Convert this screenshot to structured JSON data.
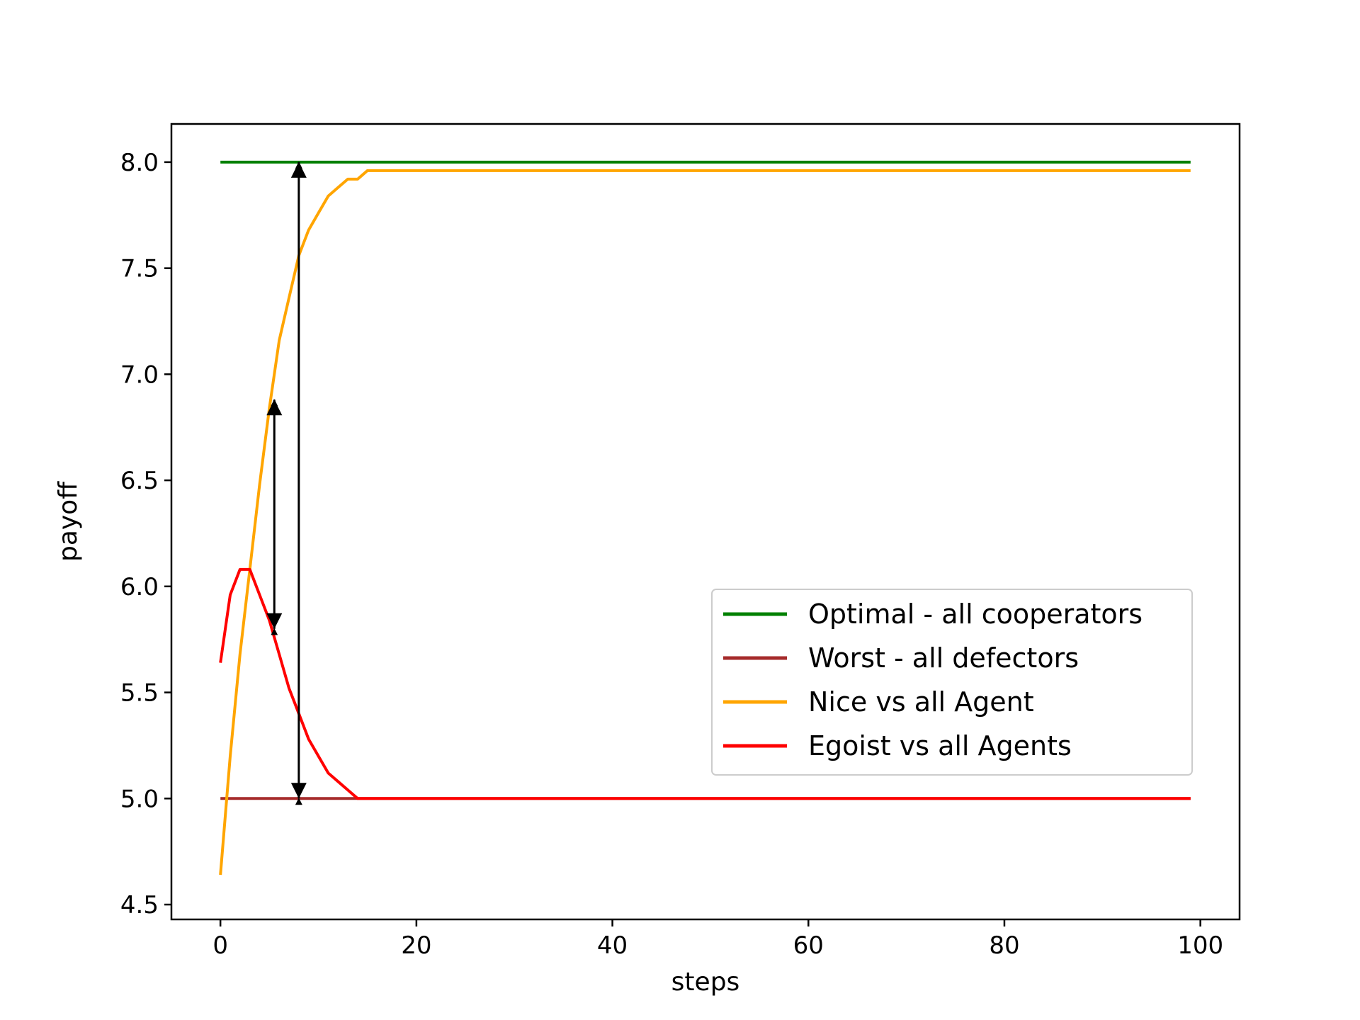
{
  "chart_data": {
    "type": "line",
    "title": "",
    "xlabel": "steps",
    "ylabel": "payoff",
    "xlim": [
      -5,
      104
    ],
    "ylim": [
      4.43,
      8.18
    ],
    "xticks": [
      0,
      20,
      40,
      60,
      80,
      100
    ],
    "xtick_labels": [
      "0",
      "20",
      "40",
      "60",
      "80",
      "100"
    ],
    "yticks": [
      4.5,
      5.0,
      5.5,
      6.0,
      6.5,
      7.0,
      7.5,
      8.0
    ],
    "ytick_labels": [
      "4.5",
      "5.0",
      "5.5",
      "6.0",
      "6.5",
      "7.0",
      "7.5",
      "8.0"
    ],
    "grid": false,
    "legend_position": "center-right",
    "series": [
      {
        "name": "Optimal - all cooperators",
        "color": "#008000",
        "x": [
          0,
          99
        ],
        "y": [
          8.0,
          8.0
        ]
      },
      {
        "name": "Worst - all defectors",
        "color": "#a52a2a",
        "x": [
          0,
          99
        ],
        "y": [
          5.0,
          5.0
        ]
      },
      {
        "name": "Nice vs all Agent",
        "color": "#ffa500",
        "x": [
          0,
          1,
          2,
          3,
          4,
          5,
          6,
          7,
          8,
          9,
          10,
          11,
          12,
          13,
          14,
          15,
          16,
          20,
          40,
          60,
          80,
          99
        ],
        "y": [
          4.64,
          5.2,
          5.68,
          6.08,
          6.48,
          6.84,
          7.16,
          7.36,
          7.56,
          7.68,
          7.76,
          7.84,
          7.88,
          7.92,
          7.92,
          7.96,
          7.96,
          7.96,
          7.96,
          7.96,
          7.96,
          7.96
        ]
      },
      {
        "name": "Egoist vs all Agents",
        "color": "#ff0000",
        "x": [
          0,
          1,
          2,
          3,
          4,
          5,
          6,
          7,
          8,
          9,
          10,
          11,
          12,
          13,
          14,
          20,
          40,
          60,
          80,
          99
        ],
        "y": [
          5.64,
          5.96,
          6.08,
          6.08,
          5.96,
          5.84,
          5.68,
          5.52,
          5.4,
          5.28,
          5.2,
          5.12,
          5.08,
          5.04,
          5.0,
          5.0,
          5.0,
          5.0,
          5.0,
          5.0
        ]
      }
    ],
    "annotations": [
      {
        "type": "double-arrow",
        "x": 8,
        "y_from": 5.0,
        "y_to": 8.0
      },
      {
        "type": "double-arrow",
        "x": 5.5,
        "y_from": 5.8,
        "y_to": 6.88
      }
    ]
  }
}
